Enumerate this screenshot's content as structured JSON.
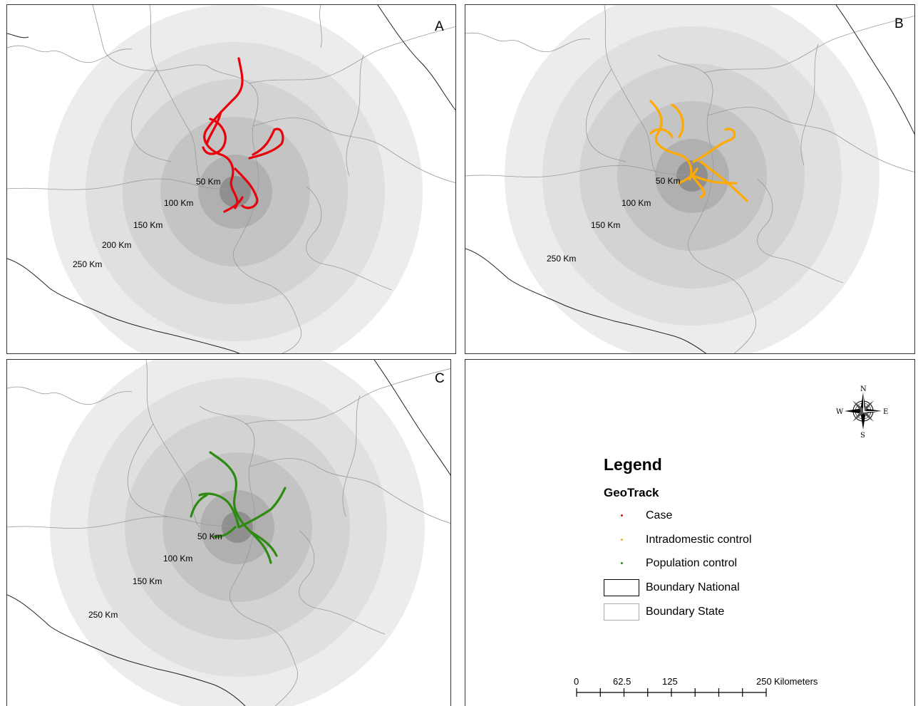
{
  "panels": [
    {
      "letter": "A",
      "track_color": "#e8000b",
      "ring_labels": [
        "50 Km",
        "100 Km",
        "150 Km",
        "200 Km",
        "250 Km"
      ]
    },
    {
      "letter": "B",
      "track_color": "#ffaa00",
      "ring_labels": [
        "50 Km",
        "100 Km",
        "150 Km",
        "250 Km"
      ]
    },
    {
      "letter": "C",
      "track_color": "#2e8b12",
      "ring_labels": [
        "50 Km",
        "100 Km",
        "150 Km",
        "250 Km"
      ]
    }
  ],
  "legend": {
    "title": "Legend",
    "subtitle": "GeoTrack",
    "items": [
      {
        "label": "Case",
        "color": "#e8000b",
        "symbol": "point"
      },
      {
        "label": "Intradomestic control",
        "color": "#ffaa00",
        "symbol": "point"
      },
      {
        "label": "Population control",
        "color": "#2e8b12",
        "symbol": "point"
      },
      {
        "label": "Boundary National",
        "color": "#000000",
        "symbol": "box"
      },
      {
        "label": "Boundary State",
        "color": "#aaaaaa",
        "symbol": "box"
      }
    ]
  },
  "compass": {
    "n": "N",
    "s": "S",
    "e": "E",
    "w": "W",
    "icon": "compass-rose-icon"
  },
  "scale_bar": {
    "labels": [
      "0",
      "62.5",
      "125",
      "250"
    ],
    "unit": "Kilometers"
  }
}
